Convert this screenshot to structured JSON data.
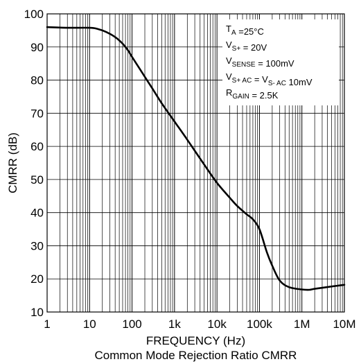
{
  "chart_data": {
    "type": "line",
    "title": "Common Mode Rejection Ratio CMRR",
    "xlabel": "FREQUENCY (Hz)",
    "ylabel": "CMRR (dB)",
    "x_scale": "log",
    "xlim": [
      1,
      10000000
    ],
    "ylim": [
      10,
      100
    ],
    "grid": true,
    "x_ticks": [
      1,
      10,
      100,
      1000,
      10000,
      100000,
      1000000,
      10000000
    ],
    "x_tick_labels": [
      "1",
      "10",
      "100",
      "1k",
      "10k",
      "100k",
      "1M",
      "10M"
    ],
    "y_ticks": [
      10,
      20,
      30,
      40,
      50,
      60,
      70,
      80,
      90,
      100
    ],
    "y_tick_labels": [
      "10",
      "20",
      "30",
      "40",
      "50",
      "60",
      "70",
      "80",
      "90",
      "100"
    ],
    "series": [
      {
        "color": "#000000",
        "x": [
          1,
          3,
          10,
          15,
          25,
          40,
          60,
          80,
          100,
          150,
          200,
          300,
          500,
          1000,
          2000,
          5000,
          10000,
          20000,
          30000,
          50000,
          70000,
          100000,
          150000,
          200000,
          300000,
          500000,
          1000000,
          1500000,
          2000000,
          5000000,
          10000000
        ],
        "y": [
          96,
          95.8,
          95.8,
          95.5,
          94.5,
          93,
          91,
          89,
          87,
          83.5,
          81,
          77.5,
          73,
          67.5,
          62,
          54.5,
          49,
          44.5,
          42,
          39.5,
          38,
          35,
          28,
          24,
          19.5,
          17.5,
          16.8,
          16.7,
          17,
          17.7,
          18.2
        ]
      }
    ],
    "annotations": [
      {
        "base": "T",
        "sub": "A",
        "rest": " =25°C"
      },
      {
        "base": "V",
        "sub": "S+",
        "rest": " = 20V"
      },
      {
        "base": "V",
        "sub": "SENSE",
        "rest": " = 100mV"
      },
      {
        "base": "V",
        "sub": "S+ AC",
        "rest": " = V",
        "sub2": "S- AC",
        "rest2": " 10mV"
      },
      {
        "base": "R",
        "sub": "GAIN",
        "rest": " = 2.5K"
      }
    ]
  }
}
